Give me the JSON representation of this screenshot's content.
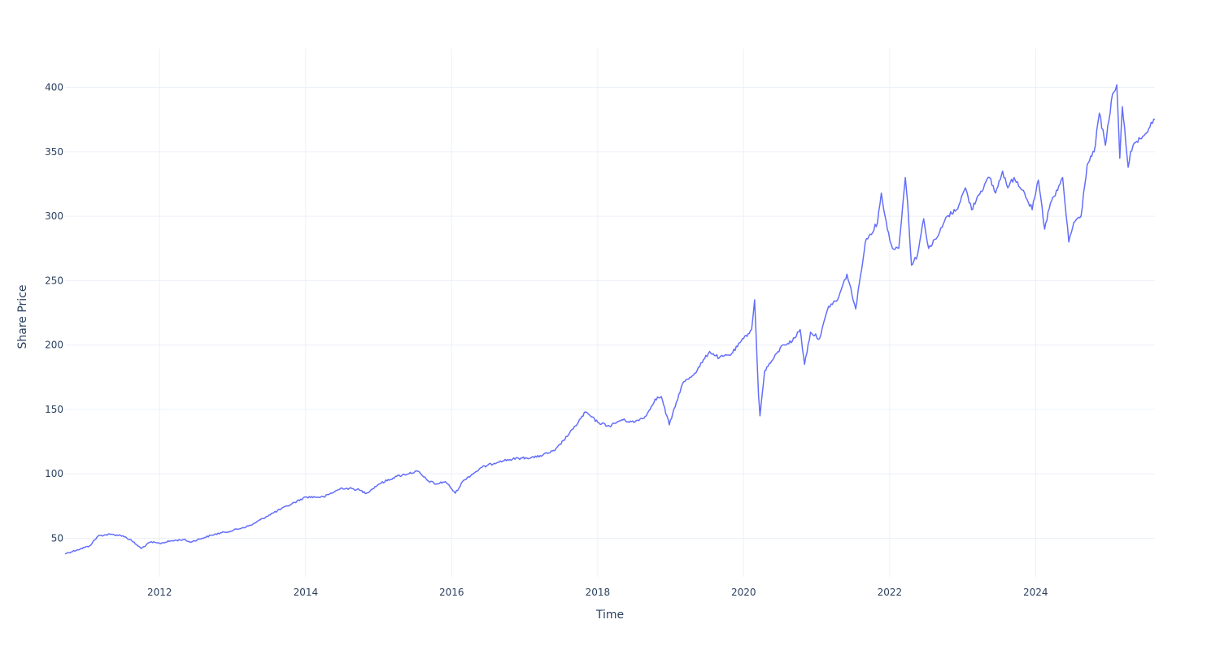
{
  "chart_data": {
    "type": "line",
    "title": "",
    "xlabel": "Time",
    "ylabel": "Share Price",
    "xlim": [
      "2010-09-15",
      "2025-08-20"
    ],
    "ylim": [
      20,
      430
    ],
    "grid": true,
    "line_color": "#636efa",
    "grid_color": "#ebf0f8",
    "text_color": "#2a3f5f",
    "x_ticks": [
      {
        "date": "2012-01-01",
        "label": "2012"
      },
      {
        "date": "2014-01-01",
        "label": "2014"
      },
      {
        "date": "2016-01-01",
        "label": "2016"
      },
      {
        "date": "2018-01-01",
        "label": "2018"
      },
      {
        "date": "2020-01-01",
        "label": "2020"
      },
      {
        "date": "2022-01-01",
        "label": "2022"
      },
      {
        "date": "2024-01-01",
        "label": "2024"
      }
    ],
    "y_ticks": [
      50,
      100,
      150,
      200,
      250,
      300,
      350,
      400
    ],
    "series": [
      {
        "x": [
          "2010-09-15",
          "2010-11-15",
          "2011-01-15",
          "2011-03-01",
          "2011-05-01",
          "2011-07-01",
          "2011-08-15",
          "2011-10-01",
          "2011-11-15",
          "2012-01-01",
          "2012-03-01",
          "2012-05-01",
          "2012-06-01",
          "2012-08-01",
          "2012-10-01",
          "2013-01-01",
          "2013-04-01",
          "2013-07-01",
          "2013-10-01",
          "2014-01-01",
          "2014-04-01",
          "2014-07-01",
          "2014-09-15",
          "2014-11-01",
          "2015-01-01",
          "2015-04-01",
          "2015-07-15",
          "2015-09-01",
          "2015-10-15",
          "2015-12-01",
          "2016-01-20",
          "2016-03-01",
          "2016-06-01",
          "2016-09-01",
          "2016-12-01",
          "2017-03-01",
          "2017-06-01",
          "2017-09-01",
          "2017-11-01",
          "2018-01-01",
          "2018-03-01",
          "2018-05-01",
          "2018-07-01",
          "2018-09-01",
          "2018-10-15",
          "2018-11-15",
          "2018-12-25",
          "2019-03-01",
          "2019-05-01",
          "2019-07-15",
          "2019-09-01",
          "2019-11-01",
          "2020-01-01",
          "2020-02-10",
          "2020-02-25",
          "2020-03-16",
          "2020-03-23",
          "2020-04-15",
          "2020-06-01",
          "2020-07-15",
          "2020-09-01",
          "2020-10-10",
          "2020-11-01",
          "2020-12-01",
          "2021-01-15",
          "2021-03-01",
          "2021-04-15",
          "2021-06-01",
          "2021-07-15",
          "2021-09-01",
          "2021-11-01",
          "2021-11-20",
          "2021-12-20",
          "2022-01-15",
          "2022-02-15",
          "2022-03-20",
          "2022-04-01",
          "2022-04-20",
          "2022-05-20",
          "2022-06-20",
          "2022-07-15",
          "2022-09-01",
          "2022-10-15",
          "2022-12-01",
          "2023-01-15",
          "2023-02-15",
          "2023-03-15",
          "2023-05-15",
          "2023-06-15",
          "2023-07-20",
          "2023-08-15",
          "2023-09-15",
          "2023-11-01",
          "2023-12-15",
          "2024-01-15",
          "2024-02-15",
          "2024-03-15",
          "2024-04-20",
          "2024-05-15",
          "2024-06-15",
          "2024-07-10",
          "2024-08-15",
          "2024-09-15",
          "2024-10-20",
          "2024-11-15",
          "2024-12-15",
          "2025-01-20",
          "2025-02-10",
          "2025-02-25",
          "2025-03-10",
          "2025-04-08",
          "2025-04-20",
          "2025-05-20",
          "2025-06-20",
          "2025-07-20",
          "2025-08-20"
        ],
        "y": [
          38,
          41,
          44,
          52,
          53,
          52,
          48,
          42,
          47,
          46,
          48,
          49,
          47,
          50,
          53,
          56,
          60,
          68,
          75,
          82,
          82,
          89,
          88,
          85,
          92,
          98,
          102,
          95,
          92,
          94,
          85,
          95,
          105,
          110,
          112,
          113,
          118,
          135,
          148,
          140,
          137,
          142,
          140,
          145,
          158,
          160,
          138,
          170,
          178,
          195,
          190,
          193,
          205,
          212,
          235,
          160,
          145,
          180,
          190,
          200,
          203,
          212,
          185,
          210,
          205,
          230,
          235,
          255,
          228,
          280,
          295,
          318,
          290,
          275,
          275,
          330,
          310,
          262,
          270,
          298,
          275,
          285,
          300,
          305,
          322,
          305,
          315,
          330,
          318,
          335,
          322,
          330,
          320,
          305,
          328,
          290,
          310,
          320,
          330,
          280,
          295,
          300,
          340,
          350,
          380,
          355,
          395,
          402,
          345,
          385,
          338,
          350,
          358,
          362,
          368,
          375
        ]
      }
    ]
  }
}
